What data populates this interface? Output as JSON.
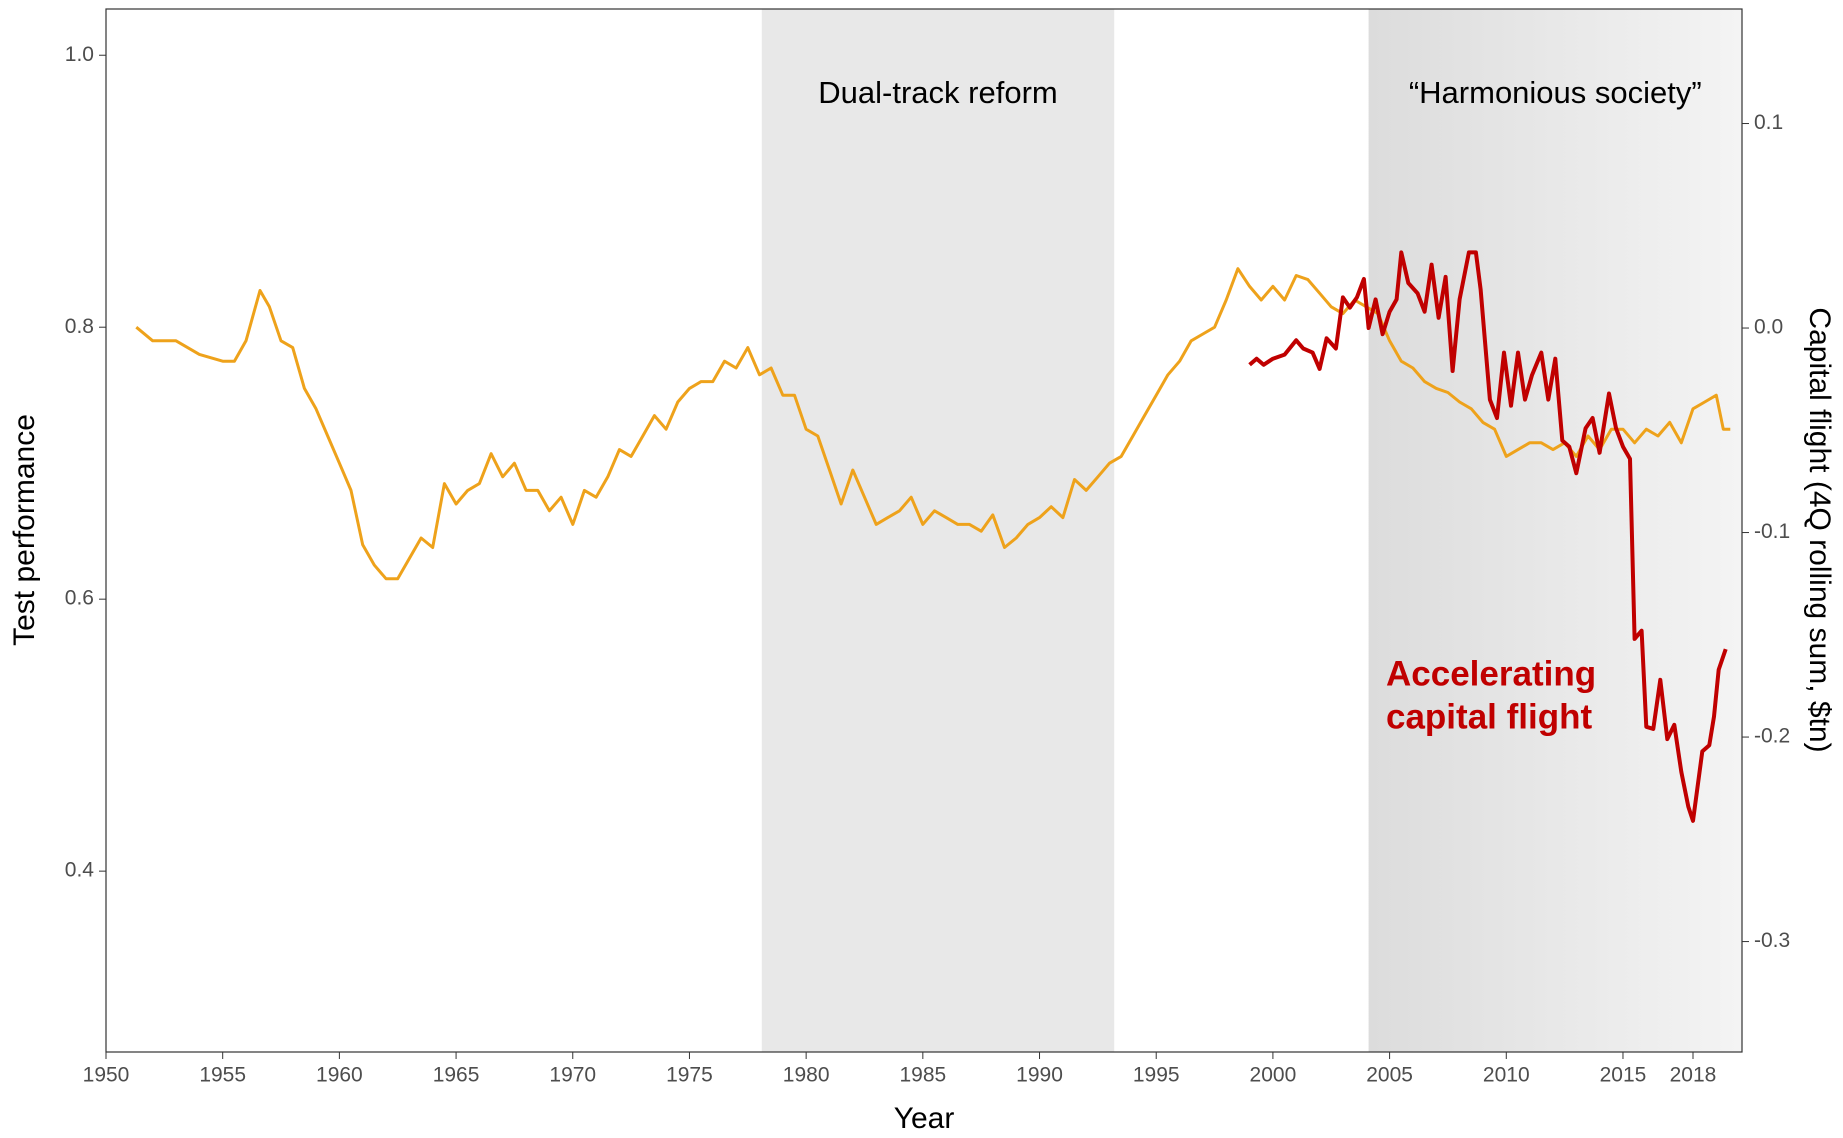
{
  "chart_data": {
    "type": "line",
    "xlabel": "Year",
    "ylabel": "Test performance",
    "y2label": "Capital flight (4Q rolling sum, $tn)",
    "xlim": [
      1950,
      2020.1
    ],
    "xticks": [
      1950,
      1955,
      1960,
      1965,
      1970,
      1975,
      1980,
      1985,
      1990,
      1995,
      2000,
      2005,
      2010,
      2015,
      2018
    ],
    "ylim": [
      0.267,
      1.034
    ],
    "yticks": [
      0.4,
      0.6,
      0.8,
      {
        "value": 1,
        "label": "1.0"
      }
    ],
    "y2lim": [
      -0.354,
      0.156
    ],
    "y2ticks": [
      -0.3,
      -0.2,
      -0.1,
      {
        "value": 0,
        "label": "0.0"
      },
      0.1
    ],
    "grid": false,
    "shaded_regions": [
      {
        "start": 1978.1,
        "end": 1993.2,
        "label": "Dual-track reform",
        "color": "#e8e8e8"
      },
      {
        "start": 2004.1,
        "end": 2020.1,
        "label": "“Harmonious society”",
        "color": "#dcdcdc",
        "color_end": "#f4f4f4"
      }
    ],
    "annotation": {
      "lines": [
        "Accelerating",
        "capital flight"
      ],
      "color": "#c00000"
    },
    "series": [
      {
        "name": "Test performance",
        "color": "#eea21b",
        "axis": "y",
        "x": [
          1951.3,
          1952,
          1953,
          1954,
          1955,
          1955.5,
          1956,
          1956.6,
          1957,
          1957.5,
          1958,
          1958.5,
          1959,
          1959.5,
          1960,
          1960.5,
          1961,
          1961.5,
          1962,
          1962.5,
          1963,
          1963.5,
          1964,
          1964.5,
          1965,
          1965.5,
          1966,
          1966.5,
          1967,
          1967.5,
          1968,
          1968.5,
          1969,
          1969.5,
          1970,
          1970.5,
          1971,
          1971.5,
          1972,
          1972.5,
          1973,
          1973.5,
          1974,
          1974.5,
          1975,
          1975.5,
          1976,
          1976.5,
          1977,
          1977.5,
          1978,
          1978.5,
          1979,
          1979.5,
          1980,
          1980.5,
          1981,
          1981.5,
          1982,
          1982.5,
          1983,
          1983.5,
          1984,
          1984.5,
          1985,
          1985.5,
          1986,
          1986.5,
          1987,
          1987.5,
          1988,
          1988.5,
          1989,
          1989.5,
          1990,
          1990.5,
          1991,
          1991.5,
          1992,
          1992.5,
          1993,
          1993.5,
          1994,
          1994.5,
          1995,
          1995.5,
          1996,
          1996.5,
          1997,
          1997.5,
          1998,
          1998.5,
          1999,
          1999.5,
          2000,
          2000.5,
          2001,
          2001.5,
          2002,
          2002.5,
          2003,
          2003.5,
          2004,
          2004.5,
          2005,
          2005.5,
          2006,
          2006.5,
          2007,
          2007.5,
          2008,
          2008.5,
          2009,
          2009.5,
          2010,
          2010.5,
          2011,
          2011.5,
          2012,
          2012.5,
          2013,
          2013.5,
          2014,
          2014.5,
          2015,
          2015.5,
          2016,
          2016.5,
          2017,
          2017.5,
          2018,
          2018.5,
          2019,
          2019.3,
          2019.6
        ],
        "values": [
          0.8,
          0.79,
          0.79,
          0.78,
          0.775,
          0.775,
          0.79,
          0.827,
          0.815,
          0.79,
          0.785,
          0.755,
          0.74,
          0.72,
          0.7,
          0.68,
          0.64,
          0.625,
          0.615,
          0.615,
          0.63,
          0.645,
          0.638,
          0.685,
          0.67,
          0.68,
          0.685,
          0.707,
          0.69,
          0.7,
          0.68,
          0.68,
          0.665,
          0.675,
          0.655,
          0.68,
          0.675,
          0.69,
          0.71,
          0.705,
          0.72,
          0.735,
          0.725,
          0.745,
          0.755,
          0.76,
          0.76,
          0.775,
          0.77,
          0.785,
          0.765,
          0.77,
          0.75,
          0.75,
          0.725,
          0.72,
          0.695,
          0.67,
          0.695,
          0.675,
          0.655,
          0.66,
          0.665,
          0.675,
          0.655,
          0.665,
          0.66,
          0.655,
          0.655,
          0.65,
          0.662,
          0.638,
          0.645,
          0.655,
          0.66,
          0.668,
          0.66,
          0.688,
          0.68,
          0.69,
          0.7,
          0.705,
          0.72,
          0.735,
          0.75,
          0.765,
          0.775,
          0.79,
          0.795,
          0.8,
          0.82,
          0.843,
          0.83,
          0.82,
          0.83,
          0.82,
          0.838,
          0.835,
          0.825,
          0.815,
          0.81,
          0.82,
          0.815,
          0.81,
          0.79,
          0.775,
          0.77,
          0.76,
          0.755,
          0.752,
          0.745,
          0.74,
          0.73,
          0.725,
          0.705,
          0.71,
          0.715,
          0.715,
          0.71,
          0.715,
          0.705,
          0.72,
          0.71,
          0.725,
          0.725,
          0.715,
          0.725,
          0.72,
          0.73,
          0.715,
          0.74,
          0.745,
          0.75,
          0.725,
          0.725
        ]
      },
      {
        "name": "Capital flight",
        "color": "#c00000",
        "axis": "y2",
        "x": [
          1999,
          1999.3,
          1999.6,
          2000,
          2000.5,
          2001,
          2001.3,
          2001.7,
          2002,
          2002.3,
          2002.7,
          2003,
          2003.3,
          2003.6,
          2003.9,
          2004.1,
          2004.4,
          2004.7,
          2005,
          2005.3,
          2005.5,
          2005.8,
          2006.2,
          2006.5,
          2006.8,
          2007.1,
          2007.4,
          2007.7,
          2008,
          2008.4,
          2008.7,
          2008.9,
          2009.3,
          2009.6,
          2009.9,
          2010.2,
          2010.5,
          2010.8,
          2011.1,
          2011.5,
          2011.8,
          2012.1,
          2012.4,
          2012.7,
          2013,
          2013.4,
          2013.7,
          2014,
          2014.4,
          2014.7,
          2015,
          2015.3,
          2015.5,
          2015.8,
          2016,
          2016.3,
          2016.6,
          2016.9,
          2017.2,
          2017.5,
          2017.8,
          2018,
          2018.4,
          2018.7,
          2018.9,
          2019.1,
          2019.4
        ],
        "values": [
          -0.018,
          -0.015,
          -0.018,
          -0.015,
          -0.013,
          -0.006,
          -0.01,
          -0.012,
          -0.02,
          -0.005,
          -0.01,
          0.015,
          0.01,
          0.015,
          0.024,
          0.0,
          0.014,
          -0.003,
          0.008,
          0.014,
          0.037,
          0.022,
          0.017,
          0.008,
          0.031,
          0.005,
          0.025,
          -0.021,
          0.014,
          0.037,
          0.037,
          0.019,
          -0.035,
          -0.044,
          -0.012,
          -0.038,
          -0.012,
          -0.035,
          -0.023,
          -0.012,
          -0.035,
          -0.015,
          -0.055,
          -0.058,
          -0.071,
          -0.049,
          -0.044,
          -0.061,
          -0.032,
          -0.049,
          -0.058,
          -0.064,
          -0.152,
          -0.148,
          -0.195,
          -0.196,
          -0.172,
          -0.201,
          -0.194,
          -0.217,
          -0.234,
          -0.241,
          -0.207,
          -0.204,
          -0.19,
          -0.167,
          -0.157
        ]
      }
    ]
  }
}
